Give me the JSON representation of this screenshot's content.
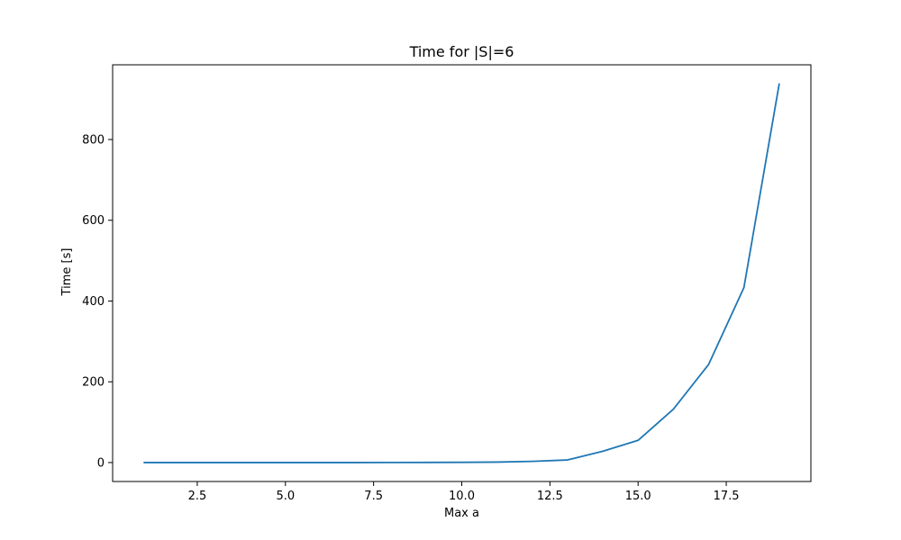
{
  "chart_data": {
    "type": "line",
    "title": "Time for |S|=6",
    "xlabel": "Max a",
    "ylabel": "Time [s]",
    "xlim": [
      0.1,
      19.9
    ],
    "ylim": [
      -46.9,
      985.0
    ],
    "xticks": [
      2.5,
      5.0,
      7.5,
      10.0,
      12.5,
      15.0,
      17.5
    ],
    "xtick_labels": [
      "2.5",
      "5.0",
      "7.5",
      "10.0",
      "12.5",
      "15.0",
      "17.5"
    ],
    "yticks": [
      0,
      200,
      400,
      600,
      800
    ],
    "ytick_labels": [
      "0",
      "200",
      "400",
      "600",
      "800"
    ],
    "grid": false,
    "series": [
      {
        "color": "#1f77b4",
        "x": [
          1,
          2,
          3,
          4,
          5,
          6,
          7,
          8,
          9,
          10,
          11,
          12,
          13,
          14,
          15,
          16,
          17,
          18,
          19
        ],
        "y": [
          0.001,
          0.002,
          0.005,
          0.01,
          0.02,
          0.04,
          0.08,
          0.15,
          0.3,
          0.6,
          1.2,
          3.0,
          6.5,
          28.0,
          55.0,
          132.0,
          243.0,
          433.0,
          937.0
        ]
      }
    ]
  }
}
